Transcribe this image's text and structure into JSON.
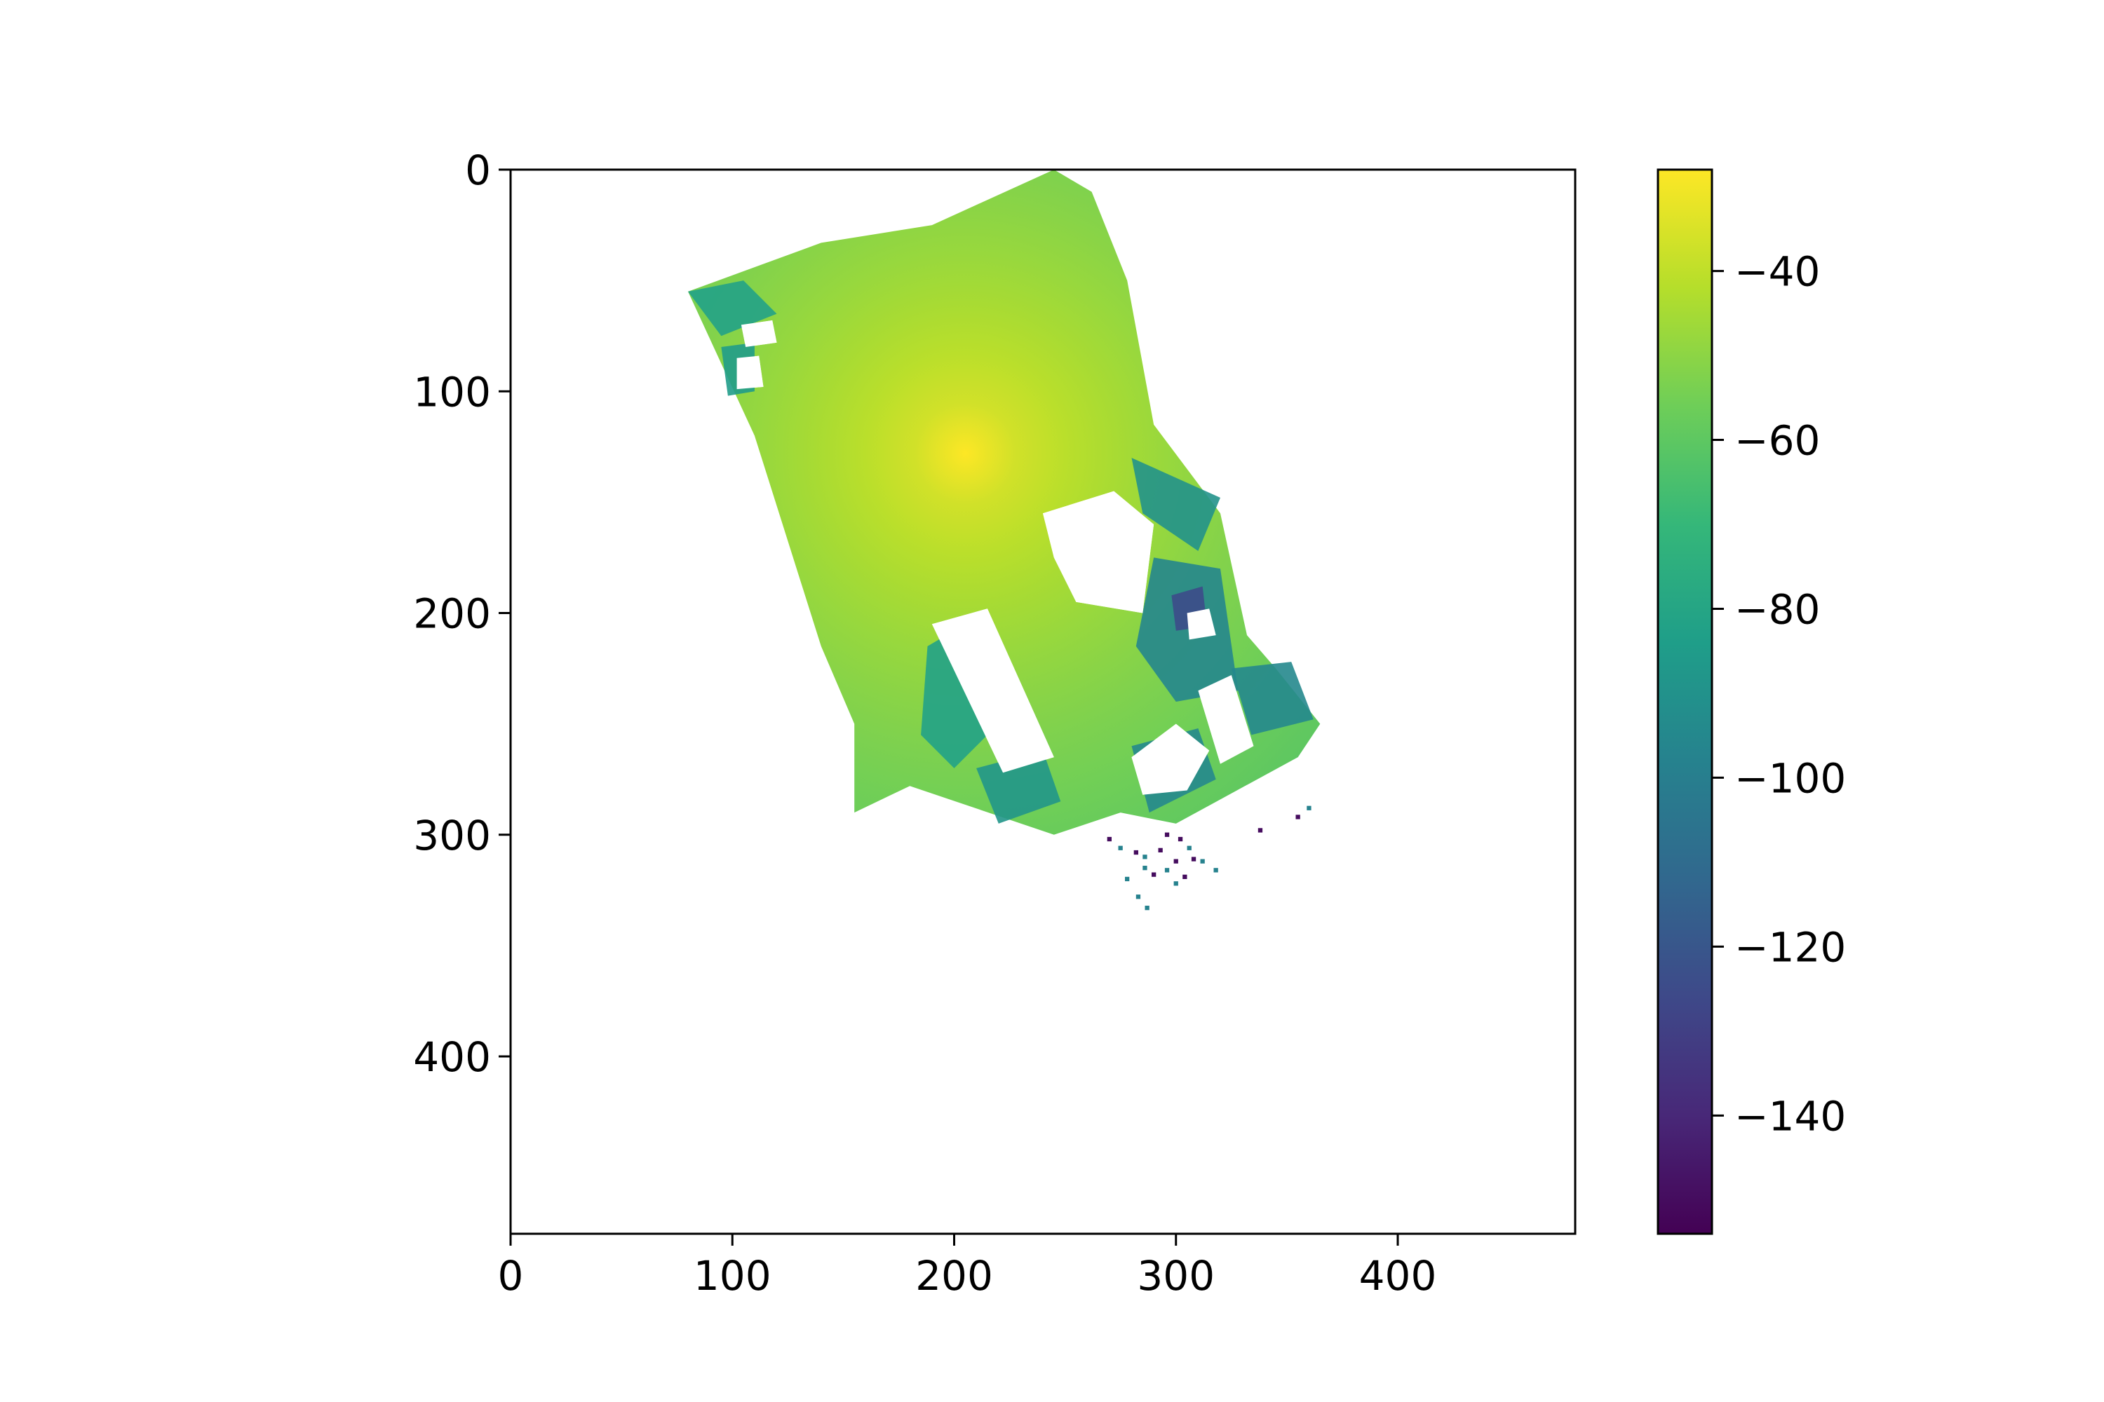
{
  "chart_data": {
    "type": "heatmap",
    "title": "",
    "xlabel": "",
    "ylabel": "",
    "xlim": [
      0,
      480
    ],
    "ylim": [
      480,
      0
    ],
    "x_ticks": [
      0,
      100,
      200,
      300,
      400
    ],
    "x_tick_labels": [
      "0",
      "100",
      "200",
      "300",
      "400"
    ],
    "y_ticks": [
      0,
      100,
      200,
      300,
      400
    ],
    "y_tick_labels": [
      "0",
      "100",
      "200",
      "300",
      "400"
    ],
    "grid": false,
    "colormap": "viridis",
    "colorbar": {
      "range": [
        -154,
        -28
      ],
      "ticks": [
        -40,
        -60,
        -80,
        -100,
        -120,
        -140
      ],
      "tick_labels": [
        "−40",
        "−60",
        "−80",
        "−100",
        "−120",
        "−140"
      ],
      "colors": [
        "#440154",
        "#482878",
        "#3e4989",
        "#31688e",
        "#26828e",
        "#1f9e89",
        "#35b779",
        "#6ece58",
        "#b5de2b",
        "#fde725"
      ]
    },
    "field": {
      "peak_value": -28,
      "peak_location": [
        205,
        128
      ],
      "base_value": -66,
      "falloff_per_unit": 0.14,
      "coverage_polygon": [
        [
          80,
          55
        ],
        [
          140,
          33
        ],
        [
          190,
          25
        ],
        [
          245,
          0
        ],
        [
          262,
          10
        ],
        [
          278,
          50
        ],
        [
          290,
          115
        ],
        [
          320,
          155
        ],
        [
          332,
          210
        ],
        [
          345,
          225
        ],
        [
          365,
          250
        ],
        [
          355,
          265
        ],
        [
          300,
          295
        ],
        [
          275,
          290
        ],
        [
          245,
          300
        ],
        [
          180,
          278
        ],
        [
          155,
          290
        ],
        [
          155,
          250
        ],
        [
          140,
          215
        ],
        [
          110,
          120
        ]
      ],
      "holes": [
        [
          [
            104,
            70
          ],
          [
            118,
            68
          ],
          [
            120,
            78
          ],
          [
            106,
            80
          ]
        ],
        [
          [
            102,
            85
          ],
          [
            112,
            84
          ],
          [
            114,
            98
          ],
          [
            102,
            99
          ]
        ],
        [
          [
            190,
            205
          ],
          [
            215,
            198
          ],
          [
            245,
            265
          ],
          [
            222,
            272
          ]
        ],
        [
          [
            240,
            155
          ],
          [
            272,
            145
          ],
          [
            290,
            160
          ],
          [
            285,
            200
          ],
          [
            255,
            195
          ],
          [
            245,
            175
          ]
        ],
        [
          [
            280,
            265
          ],
          [
            300,
            250
          ],
          [
            315,
            262
          ],
          [
            305,
            280
          ],
          [
            285,
            282
          ]
        ],
        [
          [
            310,
            235
          ],
          [
            325,
            228
          ],
          [
            335,
            260
          ],
          [
            320,
            268
          ]
        ],
        [
          [
            305,
            200
          ],
          [
            315,
            198
          ],
          [
            318,
            210
          ],
          [
            306,
            212
          ]
        ]
      ],
      "low_regions": [
        {
          "polygon": [
            [
              80,
              55
            ],
            [
              105,
              50
            ],
            [
              120,
              65
            ],
            [
              95,
              75
            ]
          ],
          "value": -82
        },
        {
          "polygon": [
            [
              95,
              80
            ],
            [
              110,
              78
            ],
            [
              110,
              100
            ],
            [
              98,
              102
            ]
          ],
          "value": -85
        },
        {
          "polygon": [
            [
              188,
              215
            ],
            [
              205,
              205
            ],
            [
              215,
              255
            ],
            [
              200,
              270
            ],
            [
              185,
              255
            ]
          ],
          "value": -82
        },
        {
          "polygon": [
            [
              210,
              270
            ],
            [
              240,
              262
            ],
            [
              248,
              285
            ],
            [
              220,
              295
            ]
          ],
          "value": -88
        },
        {
          "polygon": [
            [
              280,
              130
            ],
            [
              320,
              148
            ],
            [
              310,
              172
            ],
            [
              285,
              155
            ]
          ],
          "value": -90
        },
        {
          "polygon": [
            [
              290,
              175
            ],
            [
              320,
              180
            ],
            [
              328,
              235
            ],
            [
              300,
              240
            ],
            [
              282,
              215
            ]
          ],
          "value": -96
        },
        {
          "polygon": [
            [
              298,
              192
            ],
            [
              312,
              188
            ],
            [
              314,
              206
            ],
            [
              300,
              208
            ]
          ],
          "value": -125
        },
        {
          "polygon": [
            [
              325,
              225
            ],
            [
              352,
              222
            ],
            [
              362,
              248
            ],
            [
              334,
              255
            ]
          ],
          "value": -95
        },
        {
          "polygon": [
            [
              280,
              260
            ],
            [
              310,
              252
            ],
            [
              318,
              275
            ],
            [
              288,
              290
            ]
          ],
          "value": -95
        }
      ],
      "scatter_points": [
        [
          270,
          302,
          -150
        ],
        [
          275,
          306,
          -98
        ],
        [
          282,
          308,
          -150
        ],
        [
          286,
          310,
          -98
        ],
        [
          293,
          307,
          -150
        ],
        [
          296,
          300,
          -150
        ],
        [
          302,
          302,
          -150
        ],
        [
          306,
          306,
          -98
        ],
        [
          300,
          312,
          -150
        ],
        [
          296,
          316,
          -98
        ],
        [
          290,
          318,
          -150
        ],
        [
          286,
          315,
          -98
        ],
        [
          308,
          311,
          -150
        ],
        [
          312,
          312,
          -98
        ],
        [
          318,
          316,
          -98
        ],
        [
          304,
          319,
          -150
        ],
        [
          300,
          322,
          -98
        ],
        [
          278,
          320,
          -98
        ],
        [
          283,
          328,
          -98
        ],
        [
          287,
          333,
          -98
        ],
        [
          338,
          298,
          -150
        ],
        [
          355,
          292,
          -150
        ],
        [
          360,
          288,
          -98
        ]
      ]
    }
  }
}
